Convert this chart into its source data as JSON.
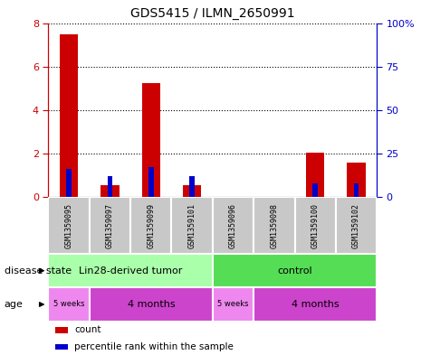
{
  "title": "GDS5415 / ILMN_2650991",
  "samples": [
    "GSM1359095",
    "GSM1359097",
    "GSM1359099",
    "GSM1359101",
    "GSM1359096",
    "GSM1359098",
    "GSM1359100",
    "GSM1359102"
  ],
  "count_values": [
    7.5,
    0.55,
    5.25,
    0.55,
    0.0,
    0.0,
    2.05,
    1.6
  ],
  "percentile_values": [
    16,
    12,
    17,
    12,
    0,
    0,
    8,
    8
  ],
  "bar_color_count": "#cc0000",
  "bar_color_pct": "#0000cc",
  "ylim_left": [
    0,
    8
  ],
  "ylim_right": [
    0,
    100
  ],
  "yticks_left": [
    0,
    2,
    4,
    6,
    8
  ],
  "yticks_right": [
    0,
    25,
    50,
    75,
    100
  ],
  "ytick_right_labels": [
    "0",
    "25",
    "50",
    "75",
    "100%"
  ],
  "disease_state_groups": [
    {
      "label": "Lin28-derived tumor",
      "start": 0,
      "end": 4,
      "color": "#aaffaa"
    },
    {
      "label": "control",
      "start": 4,
      "end": 8,
      "color": "#55dd55"
    }
  ],
  "age_groups": [
    {
      "label": "5 weeks",
      "start": 0,
      "end": 1,
      "color": "#ee88ee"
    },
    {
      "label": "4 months",
      "start": 1,
      "end": 4,
      "color": "#cc44cc"
    },
    {
      "label": "5 weeks",
      "start": 4,
      "end": 5,
      "color": "#ee88ee"
    },
    {
      "label": "4 months",
      "start": 5,
      "end": 8,
      "color": "#cc44cc"
    }
  ],
  "disease_state_label": "disease state",
  "age_label": "age",
  "legend_count_label": "count",
  "legend_pct_label": "percentile rank within the sample",
  "background_color": "#ffffff",
  "left_axis_color": "#cc0000",
  "right_axis_color": "#0000cc",
  "sample_box_color": "#c8c8c8",
  "grid_color": "#000000"
}
